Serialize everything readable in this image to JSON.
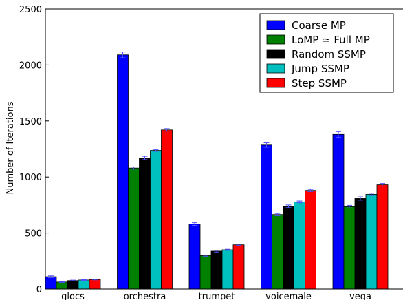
{
  "chart_data": {
    "type": "bar",
    "title": "",
    "xlabel": "",
    "ylabel": "Number of Iterations",
    "ylim": [
      0,
      2500
    ],
    "yticks": [
      0,
      500,
      1000,
      1500,
      2000,
      2500
    ],
    "grid": false,
    "legend_position": "top-right",
    "categories": [
      "glocs",
      "orchestra",
      "trumpet",
      "voicemale",
      "vega"
    ],
    "series": [
      {
        "name": "Coarse MP",
        "color": "#0000ff",
        "values": [
          110,
          2090,
          580,
          1285,
          1380
        ],
        "errors": [
          8,
          25,
          12,
          20,
          25
        ]
      },
      {
        "name": "LoMP ≃ Full MP",
        "color": "#008000",
        "values": [
          62,
          1080,
          298,
          665,
          735
        ],
        "errors": [
          3,
          10,
          5,
          10,
          12
        ]
      },
      {
        "name": "Random SSMP",
        "color": "#000000",
        "values": [
          75,
          1170,
          338,
          738,
          808
        ],
        "errors": [
          4,
          15,
          8,
          12,
          15
        ]
      },
      {
        "name": "Jump SSMP",
        "color": "#00bfbf",
        "values": [
          80,
          1237,
          350,
          778,
          845
        ],
        "errors": [
          3,
          8,
          5,
          8,
          10
        ]
      },
      {
        "name": "Step SSMP",
        "color": "#ff0000",
        "values": [
          85,
          1420,
          395,
          880,
          930
        ],
        "errors": [
          4,
          12,
          6,
          10,
          12
        ]
      }
    ]
  }
}
